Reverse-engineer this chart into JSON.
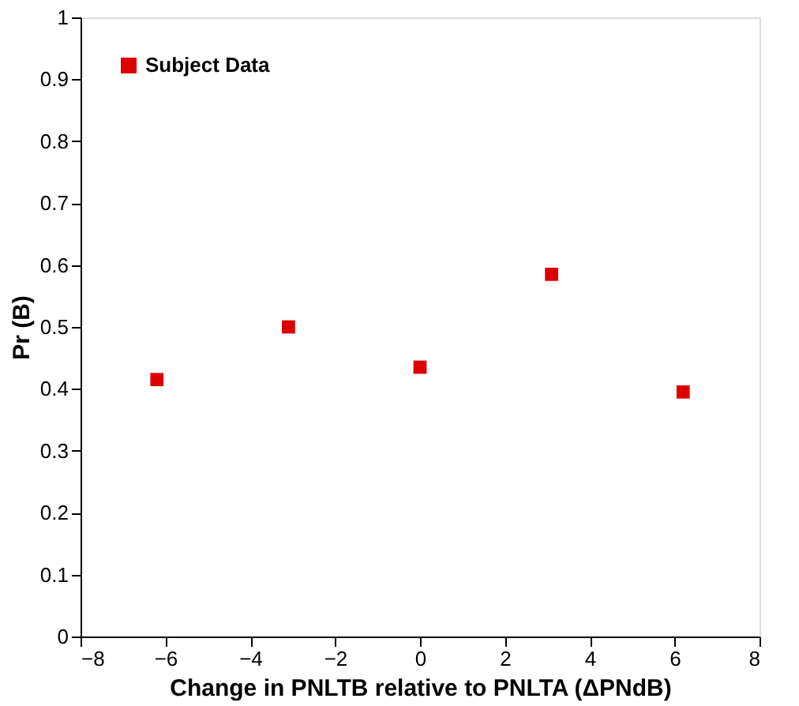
{
  "chart_data": {
    "type": "scatter",
    "xlabel": "Change in PNLTB relative to PNLTA (ΔPNdB)",
    "ylabel": "Pr (B)",
    "x": [
      -6.2,
      -3.1,
      0,
      3.1,
      6.2
    ],
    "series": [
      {
        "name": "Subject Data",
        "color": "#dd0000",
        "values": [
          0.415,
          0.5,
          0.435,
          0.585,
          0.395
        ]
      }
    ],
    "xlim": [
      -8,
      8
    ],
    "xticks": [
      -8,
      -6,
      -4,
      -2,
      0,
      2,
      4,
      6,
      8
    ],
    "ylim": [
      0,
      1
    ],
    "yticks": [
      0,
      0.1,
      0.2,
      0.3,
      0.4,
      0.5,
      0.6,
      0.7,
      0.8,
      0.9,
      1
    ],
    "grid": false,
    "legend": "top left",
    "marker": "square"
  }
}
